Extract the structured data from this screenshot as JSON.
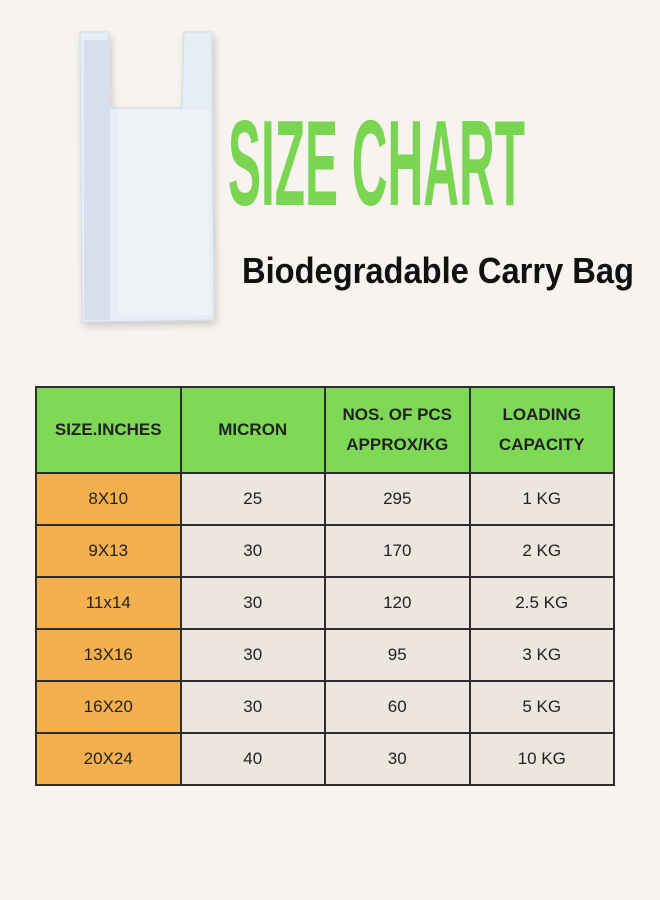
{
  "header": {
    "title": "SIZE CHART",
    "subtitle": "Biodegradable Carry Bag"
  },
  "table": {
    "columns": [
      [
        "SIZE.INCHES"
      ],
      [
        "MICRON"
      ],
      [
        "NOS. OF PCS",
        "APPROX/KG"
      ],
      [
        "LOADING",
        "CAPACITY"
      ]
    ],
    "rows": [
      [
        "8X10",
        25,
        295,
        "1 KG"
      ],
      [
        "9X13",
        30,
        170,
        "2 KG"
      ],
      [
        "11x14",
        30,
        120,
        "2.5 KG"
      ],
      [
        "13X16",
        30,
        95,
        "3 KG"
      ],
      [
        "16X20",
        30,
        60,
        "5 KG"
      ],
      [
        "20X24",
        40,
        30,
        "10 KG"
      ]
    ]
  }
}
